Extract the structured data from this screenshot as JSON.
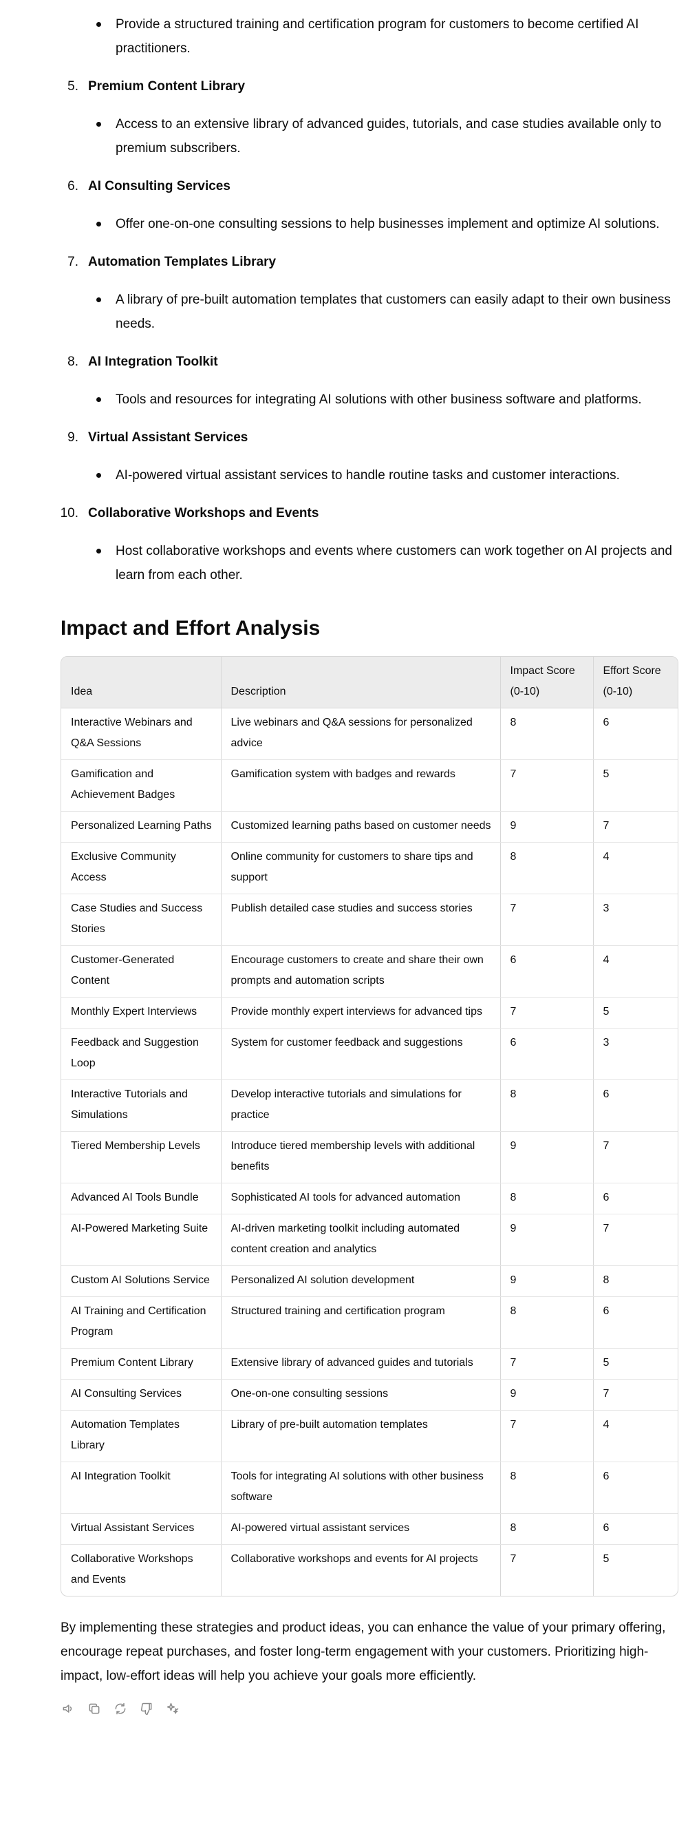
{
  "intro_bullet": "Provide a structured training and certification program for customers to become certified AI practitioners.",
  "ideas": [
    {
      "num": "5.",
      "title": "Premium Content Library",
      "bullet": "Access to an extensive library of advanced guides, tutorials, and case studies available only to premium subscribers."
    },
    {
      "num": "6.",
      "title": "AI Consulting Services",
      "bullet": "Offer one-on-one consulting sessions to help businesses implement and optimize AI solutions."
    },
    {
      "num": "7.",
      "title": "Automation Templates Library",
      "bullet": "A library of pre-built automation templates that customers can easily adapt to their own business needs."
    },
    {
      "num": "8.",
      "title": "AI Integration Toolkit",
      "bullet": "Tools and resources for integrating AI solutions with other business software and platforms."
    },
    {
      "num": "9.",
      "title": "Virtual Assistant Services",
      "bullet": "AI-powered virtual assistant services to handle routine tasks and customer interactions."
    },
    {
      "num": "10.",
      "title": "Collaborative Workshops and Events",
      "bullet": "Host collaborative workshops and events where customers can work together on AI projects and learn from each other."
    }
  ],
  "section_title": "Impact and Effort Analysis",
  "table": {
    "headers": [
      "Idea",
      "Description",
      "Impact Score (0-10)",
      "Effort Score (0-10)"
    ],
    "rows": [
      [
        "Interactive Webinars and Q&A Sessions",
        "Live webinars and Q&A sessions for personalized advice",
        "8",
        "6"
      ],
      [
        "Gamification and Achievement Badges",
        "Gamification system with badges and rewards",
        "7",
        "5"
      ],
      [
        "Personalized Learning Paths",
        "Customized learning paths based on customer needs",
        "9",
        "7"
      ],
      [
        "Exclusive Community Access",
        "Online community for customers to share tips and support",
        "8",
        "4"
      ],
      [
        "Case Studies and Success Stories",
        "Publish detailed case studies and success stories",
        "7",
        "3"
      ],
      [
        "Customer-Generated Content",
        "Encourage customers to create and share their own prompts and automation scripts",
        "6",
        "4"
      ],
      [
        "Monthly Expert Interviews",
        "Provide monthly expert interviews for advanced tips",
        "7",
        "5"
      ],
      [
        "Feedback and Suggestion Loop",
        "System for customer feedback and suggestions",
        "6",
        "3"
      ],
      [
        "Interactive Tutorials and Simulations",
        "Develop interactive tutorials and simulations for practice",
        "8",
        "6"
      ],
      [
        "Tiered Membership Levels",
        "Introduce tiered membership levels with additional benefits",
        "9",
        "7"
      ],
      [
        "Advanced AI Tools Bundle",
        "Sophisticated AI tools for advanced automation",
        "8",
        "6"
      ],
      [
        "AI-Powered Marketing Suite",
        "AI-driven marketing toolkit including automated content creation and analytics",
        "9",
        "7"
      ],
      [
        "Custom AI Solutions Service",
        "Personalized AI solution development",
        "9",
        "8"
      ],
      [
        "AI Training and Certification Program",
        "Structured training and certification program",
        "8",
        "6"
      ],
      [
        "Premium Content Library",
        "Extensive library of advanced guides and tutorials",
        "7",
        "5"
      ],
      [
        "AI Consulting Services",
        "One-on-one consulting sessions",
        "9",
        "7"
      ],
      [
        "Automation Templates Library",
        "Library of pre-built automation templates",
        "7",
        "4"
      ],
      [
        "AI Integration Toolkit",
        "Tools for integrating AI solutions with other business software",
        "8",
        "6"
      ],
      [
        "Virtual Assistant Services",
        "AI-powered virtual assistant services",
        "8",
        "6"
      ],
      [
        "Collaborative Workshops and Events",
        "Collaborative workshops and events for AI projects",
        "7",
        "5"
      ]
    ]
  },
  "closing": "By implementing these strategies and product ideas, you can enhance the value of your primary offering, encourage repeat purchases, and foster long-term engagement with your customers. Prioritizing high-impact, low-effort ideas will help you achieve your goals more efficiently.",
  "actions": [
    {
      "name": "read-aloud-icon"
    },
    {
      "name": "copy-icon"
    },
    {
      "name": "regenerate-icon"
    },
    {
      "name": "thumbs-down-icon"
    },
    {
      "name": "model-sparkle-icon"
    }
  ]
}
